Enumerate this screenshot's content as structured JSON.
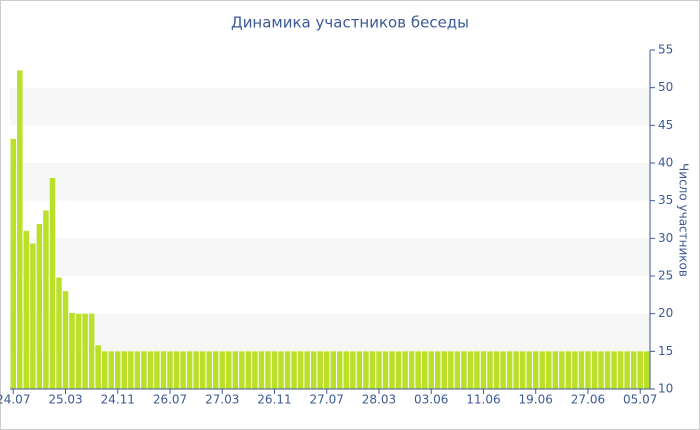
{
  "chart_data": {
    "type": "bar",
    "title": "Динамика участников беседы",
    "y_label": "Число участников",
    "categories": [
      "24.07",
      null,
      null,
      null,
      null,
      null,
      null,
      null,
      "25.03",
      null,
      null,
      null,
      null,
      null,
      null,
      null,
      "24.11",
      null,
      null,
      null,
      null,
      null,
      null,
      null,
      "26.07",
      null,
      null,
      null,
      null,
      null,
      null,
      null,
      "27.03",
      null,
      null,
      null,
      null,
      null,
      null,
      null,
      "26.11",
      null,
      null,
      null,
      null,
      null,
      null,
      null,
      "27.07",
      null,
      null,
      null,
      null,
      null,
      null,
      null,
      "28.03",
      null,
      null,
      null,
      null,
      null,
      null,
      null,
      "03.06",
      null,
      null,
      null,
      null,
      null,
      null,
      null,
      "11.06",
      null,
      null,
      null,
      null,
      null,
      null,
      null,
      "19.06",
      null,
      null,
      null,
      null,
      null,
      null,
      null,
      "27.06",
      null,
      null,
      null,
      null,
      null,
      null,
      null,
      "05.07",
      null
    ],
    "values": [
      43.2,
      52.3,
      31,
      29.3,
      31.9,
      33.7,
      38,
      24.8,
      23,
      20.1,
      20,
      20,
      20,
      15.8,
      15,
      15,
      15,
      15,
      15,
      15,
      15,
      15,
      15,
      15,
      15,
      15,
      15,
      15,
      15,
      15,
      15,
      15,
      15,
      15,
      15,
      15,
      15,
      15,
      15,
      15,
      15,
      15,
      15,
      15,
      15,
      15,
      15,
      15,
      15,
      15,
      15,
      15,
      15,
      15,
      15,
      15,
      15,
      15,
      15,
      15,
      15,
      15,
      15,
      15,
      15,
      15,
      15,
      15,
      15,
      15,
      15,
      15,
      15,
      15,
      15,
      15,
      15,
      15,
      15,
      15,
      15,
      15,
      15,
      15,
      15,
      15,
      15,
      15,
      15,
      15,
      15,
      15,
      15,
      15,
      15,
      15,
      15,
      15
    ],
    "color": "#bbe02a",
    "ylim": [
      10,
      55
    ],
    "yticks": [
      10,
      15,
      20,
      25,
      30,
      35,
      40,
      45,
      50,
      55
    ],
    "y_axis_side": "right",
    "banded_grid": true
  }
}
